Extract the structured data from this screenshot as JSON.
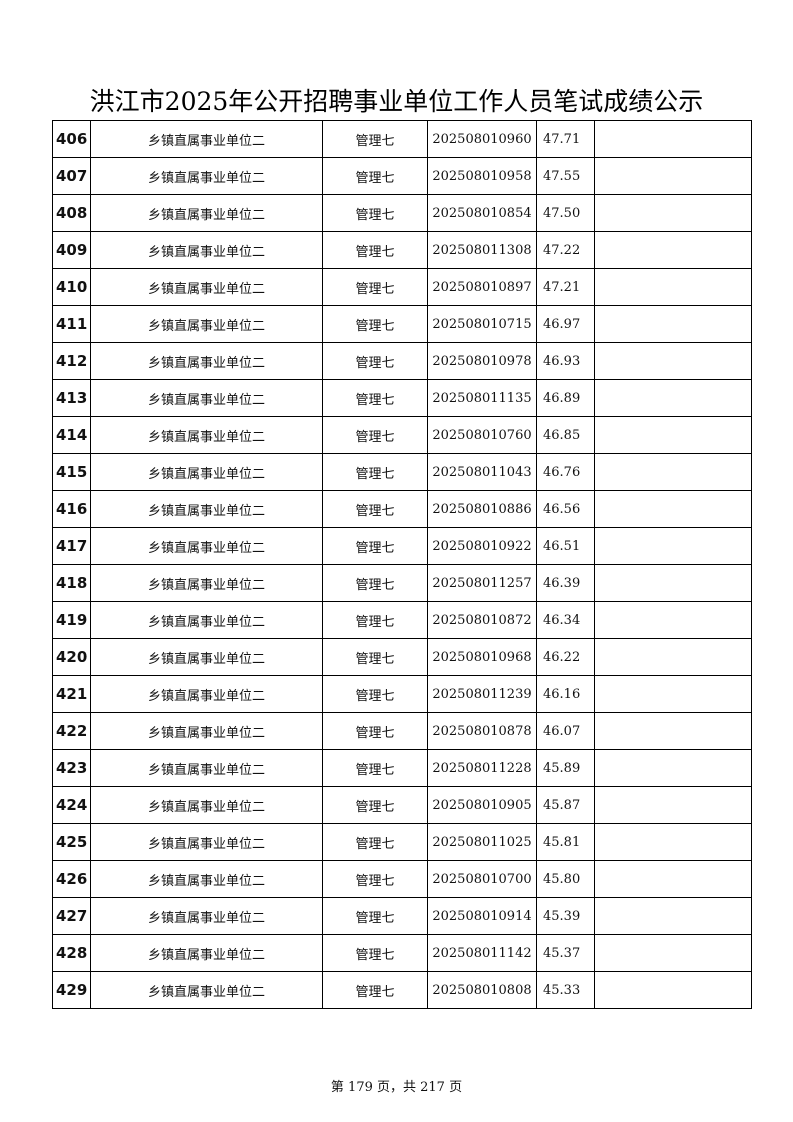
{
  "header": {
    "title": "洪江市2025年公开招聘事业单位工作人员笔试成绩公示"
  },
  "table": {
    "rows": [
      [
        "406",
        "乡镇直属事业单位二",
        "管理七",
        "202508010960",
        "47.71"
      ],
      [
        "407",
        "乡镇直属事业单位二",
        "管理七",
        "202508010958",
        "47.55"
      ],
      [
        "408",
        "乡镇直属事业单位二",
        "管理七",
        "202508010854",
        "47.50"
      ],
      [
        "409",
        "乡镇直属事业单位二",
        "管理七",
        "202508011308",
        "47.22"
      ],
      [
        "410",
        "乡镇直属事业单位二",
        "管理七",
        "202508010897",
        "47.21"
      ],
      [
        "411",
        "乡镇直属事业单位二",
        "管理七",
        "202508010715",
        "46.97"
      ],
      [
        "412",
        "乡镇直属事业单位二",
        "管理七",
        "202508010978",
        "46.93"
      ],
      [
        "413",
        "乡镇直属事业单位二",
        "管理七",
        "202508011135",
        "46.89"
      ],
      [
        "414",
        "乡镇直属事业单位二",
        "管理七",
        "202508010760",
        "46.85"
      ],
      [
        "415",
        "乡镇直属事业单位二",
        "管理七",
        "202508011043",
        "46.76"
      ],
      [
        "416",
        "乡镇直属事业单位二",
        "管理七",
        "202508010886",
        "46.56"
      ],
      [
        "417",
        "乡镇直属事业单位二",
        "管理七",
        "202508010922",
        "46.51"
      ],
      [
        "418",
        "乡镇直属事业单位二",
        "管理七",
        "202508011257",
        "46.39"
      ],
      [
        "419",
        "乡镇直属事业单位二",
        "管理七",
        "202508010872",
        "46.34"
      ],
      [
        "420",
        "乡镇直属事业单位二",
        "管理七",
        "202508010968",
        "46.22"
      ],
      [
        "421",
        "乡镇直属事业单位二",
        "管理七",
        "202508011239",
        "46.16"
      ],
      [
        "422",
        "乡镇直属事业单位二",
        "管理七",
        "202508010878",
        "46.07"
      ],
      [
        "423",
        "乡镇直属事业单位二",
        "管理七",
        "202508011228",
        "45.89"
      ],
      [
        "424",
        "乡镇直属事业单位二",
        "管理七",
        "202508010905",
        "45.87"
      ],
      [
        "425",
        "乡镇直属事业单位二",
        "管理七",
        "202508011025",
        "45.81"
      ],
      [
        "426",
        "乡镇直属事业单位二",
        "管理七",
        "202508010700",
        "45.80"
      ],
      [
        "427",
        "乡镇直属事业单位二",
        "管理七",
        "202508010914",
        "45.39"
      ],
      [
        "428",
        "乡镇直属事业单位二",
        "管理七",
        "202508011142",
        "45.37"
      ],
      [
        "429",
        "乡镇直属事业单位二",
        "管理七",
        "202508010808",
        "45.33"
      ]
    ]
  },
  "footer": {
    "page": "第 179 页，共 217 页"
  }
}
